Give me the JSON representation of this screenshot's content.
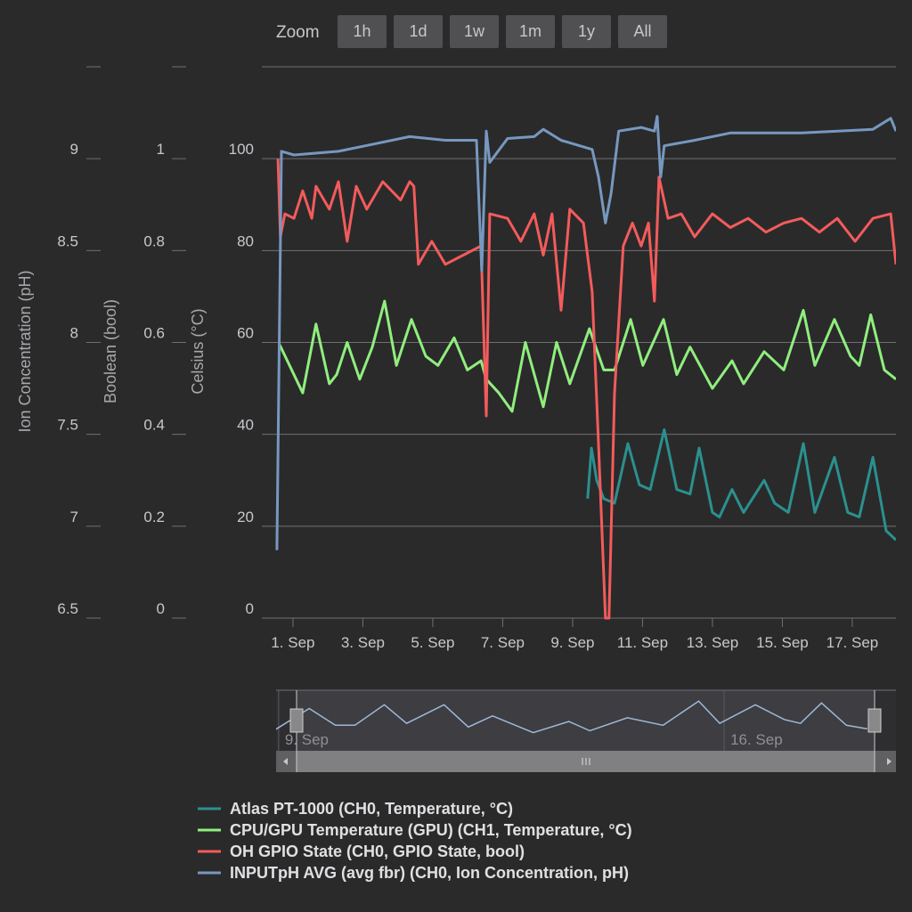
{
  "range_selector": {
    "label": "Zoom",
    "buttons": [
      "1h",
      "1d",
      "1w",
      "1m",
      "1y",
      "All"
    ]
  },
  "chart_data": {
    "type": "line",
    "xlim": [
      0.11,
      18.25
    ],
    "xticks": [
      {
        "value": 1,
        "label": "1. Sep"
      },
      {
        "value": 3,
        "label": "3. Sep"
      },
      {
        "value": 5,
        "label": "5. Sep"
      },
      {
        "value": 7,
        "label": "7. Sep"
      },
      {
        "value": 9,
        "label": "9. Sep"
      },
      {
        "value": 11,
        "label": "11. Sep"
      },
      {
        "value": 13,
        "label": "13. Sep"
      },
      {
        "value": 15,
        "label": "15. Sep"
      },
      {
        "value": 17,
        "label": "17. Sep"
      }
    ],
    "grid": true,
    "yaxes": [
      {
        "title": "Celsius (°C)",
        "lim": [
          0,
          120
        ],
        "ticks": [
          0,
          20,
          40,
          60,
          80,
          100
        ]
      },
      {
        "title": "Boolean (bool)",
        "lim": [
          0,
          1.2
        ],
        "ticks": [
          0,
          0.2,
          0.4,
          0.6,
          0.8,
          1
        ]
      },
      {
        "title": "Ion Concentration (pH)",
        "lim": [
          6.5,
          9.5
        ],
        "ticks": [
          6.5,
          7,
          7.5,
          8,
          8.5,
          9
        ]
      }
    ],
    "series": [
      {
        "name": "Atlas PT-1000 (CH0, Temperature, °C)",
        "color": "#2b908f",
        "axis": 0,
        "x": [
          9.43,
          9.54,
          9.69,
          9.89,
          10.2,
          10.58,
          10.91,
          11.22,
          11.62,
          11.98,
          12.36,
          12.62,
          13.0,
          13.2,
          13.56,
          13.89,
          14.48,
          14.78,
          15.17,
          15.6,
          15.93,
          16.49,
          16.87,
          17.2,
          17.59,
          17.97,
          18.25
        ],
        "values": [
          26,
          37,
          30,
          26,
          25,
          38,
          29,
          28,
          41,
          28,
          27,
          37,
          23,
          22,
          28,
          23,
          30,
          25,
          23,
          38,
          23,
          35,
          23,
          22,
          35,
          19,
          17
        ]
      },
      {
        "name": "CPU/GPU Temperature (GPU) (CH1, Temperature, °C)",
        "color": "#90ee7e",
        "axis": 0,
        "x": [
          0.62,
          1.28,
          1.66,
          2.04,
          2.25,
          2.55,
          2.91,
          3.27,
          3.62,
          3.96,
          4.39,
          4.8,
          5.15,
          5.61,
          5.99,
          6.38,
          6.53,
          6.89,
          7.27,
          7.65,
          8.16,
          8.54,
          8.92,
          9.48,
          9.89,
          10.2,
          10.66,
          11.01,
          11.6,
          11.98,
          12.36,
          13.0,
          13.56,
          13.89,
          14.48,
          15.04,
          15.6,
          15.93,
          16.49,
          16.95,
          17.2,
          17.53,
          17.92,
          18.25
        ],
        "values": [
          59.5,
          49,
          64,
          51,
          53,
          60,
          52,
          59,
          69,
          55,
          65,
          57,
          55,
          61,
          54,
          56,
          52,
          49,
          45,
          60,
          46,
          60,
          51,
          63,
          54,
          54,
          65,
          55,
          65,
          53,
          59,
          50,
          56,
          51,
          58,
          54,
          67,
          55,
          65,
          57,
          55,
          66,
          54,
          52
        ]
      },
      {
        "name": "OH GPIO State (CH0, GPIO State, bool)",
        "color": "#f45b5b",
        "axis": 1,
        "x": [
          0.57,
          0.64,
          0.77,
          1.03,
          1.28,
          1.54,
          1.66,
          2.04,
          2.3,
          2.55,
          2.81,
          3.11,
          3.57,
          4.08,
          4.34,
          4.46,
          4.59,
          4.97,
          5.36,
          5.87,
          6.38,
          6.53,
          6.63,
          7.14,
          7.52,
          7.9,
          8.16,
          8.41,
          8.67,
          8.92,
          9.31,
          9.56,
          9.74,
          9.94,
          10.04,
          10.2,
          10.45,
          10.71,
          10.96,
          11.17,
          11.34,
          11.47,
          11.73,
          12.11,
          12.49,
          13.0,
          13.51,
          14.02,
          14.53,
          15.04,
          15.55,
          16.06,
          16.57,
          17.08,
          17.59,
          18.1,
          18.25
        ],
        "values": [
          1.0,
          0.83,
          0.88,
          0.87,
          0.93,
          0.87,
          0.94,
          0.89,
          0.95,
          0.82,
          0.94,
          0.89,
          0.95,
          0.91,
          0.95,
          0.94,
          0.77,
          0.82,
          0.77,
          0.79,
          0.81,
          0.44,
          0.88,
          0.87,
          0.82,
          0.88,
          0.79,
          0.88,
          0.67,
          0.89,
          0.86,
          0.71,
          0.38,
          0,
          0,
          0.49,
          0.81,
          0.86,
          0.81,
          0.86,
          0.69,
          0.96,
          0.87,
          0.88,
          0.83,
          0.88,
          0.85,
          0.87,
          0.84,
          0.86,
          0.87,
          0.84,
          0.87,
          0.82,
          0.87,
          0.88,
          0.77
        ]
      },
      {
        "name": "INPUTpH AVG (avg fbr) (CH0, Ion Concentration, pH)",
        "color": "#7798bf",
        "axis": 2,
        "x": [
          0.54,
          0.67,
          1.03,
          2.3,
          3.32,
          4.34,
          5.36,
          6.25,
          6.4,
          6.53,
          6.63,
          7.14,
          7.9,
          8.16,
          8.67,
          9.56,
          9.74,
          9.94,
          10.1,
          10.32,
          10.96,
          11.34,
          11.42,
          11.52,
          11.62,
          12.49,
          13.51,
          14.53,
          15.55,
          16.57,
          17.59,
          18.1,
          18.25
        ],
        "values": [
          6.87,
          9.04,
          9.02,
          9.04,
          9.08,
          9.12,
          9.1,
          9.1,
          8.39,
          9.15,
          8.98,
          9.11,
          9.12,
          9.16,
          9.1,
          9.05,
          8.9,
          8.65,
          8.81,
          9.15,
          9.17,
          9.15,
          9.23,
          8.9,
          9.07,
          9.1,
          9.14,
          9.14,
          9.14,
          9.15,
          9.16,
          9.22,
          9.15
        ]
      }
    ],
    "navigator": {
      "series": 1,
      "xlim": [
        8.96,
        18.7
      ],
      "xticks": [
        {
          "value": 9,
          "label": "9. Sep"
        },
        {
          "value": 16,
          "label": "16. Sep"
        }
      ]
    }
  }
}
